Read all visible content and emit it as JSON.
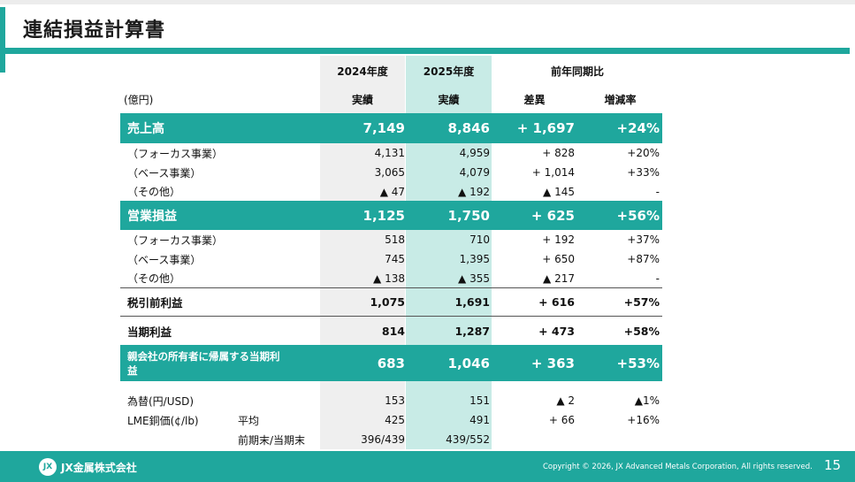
{
  "title": "連結損益計算書",
  "unit": "(億円)",
  "headers": {
    "fy2024": "2024年度",
    "fy2025": "2025年度",
    "yoy": "前年同期比",
    "actual_24": "実績",
    "actual_25": "実績",
    "diff": "差異",
    "rate": "増減率"
  },
  "rows": [
    {
      "label": "売上高",
      "v24": "7,149",
      "v25": "8,846",
      "diff": "+ 1,697",
      "rate": "+24%"
    },
    {
      "label": "（フォーカス事業）",
      "v24": "4,131",
      "v25": "4,959",
      "diff": "+ 828",
      "rate": "+20%"
    },
    {
      "label": "（ベース事業）",
      "v24": "3,065",
      "v25": "4,079",
      "diff": "+ 1,014",
      "rate": "+33%"
    },
    {
      "label": "（その他）",
      "v24": "▲ 47",
      "v25": "▲ 192",
      "diff": "▲ 145",
      "rate": "-"
    },
    {
      "label": "営業損益",
      "v24": "1,125",
      "v25": "1,750",
      "diff": "+ 625",
      "rate": "+56%"
    },
    {
      "label": "（フォーカス事業）",
      "v24": "518",
      "v25": "710",
      "diff": "+ 192",
      "rate": "+37%"
    },
    {
      "label": "（ベース事業）",
      "v24": "745",
      "v25": "1,395",
      "diff": "+ 650",
      "rate": "+87%"
    },
    {
      "label": "（その他）",
      "v24": "▲ 138",
      "v25": "▲ 355",
      "diff": "▲ 217",
      "rate": "-"
    },
    {
      "label": "税引前利益",
      "v24": "1,075",
      "v25": "1,691",
      "diff": "+ 616",
      "rate": "+57%"
    },
    {
      "label": "当期利益",
      "v24": "814",
      "v25": "1,287",
      "diff": "+ 473",
      "rate": "+58%"
    },
    {
      "label": "親会社の所有者に帰属する当期利益",
      "v24": "683",
      "v25": "1,046",
      "diff": "+ 363",
      "rate": "+53%"
    },
    {
      "label": "為替(円/USD)",
      "v24": "153",
      "v25": "151",
      "diff": "▲ 2",
      "rate": "▲1%"
    },
    {
      "label": "LME銅価(¢/lb)",
      "sub": "平均",
      "v24": "425",
      "v25": "491",
      "diff": "+ 66",
      "rate": "+16%"
    },
    {
      "sub": "前期末/当期末",
      "v24": "396/439",
      "v25": "439/552"
    }
  ],
  "footer": {
    "logo_mark": "JX",
    "logo": "JX金属株式会社",
    "copyright": "Copyright © 2026, JX Advanced Metals Corporation, All rights reserved.",
    "page": "15"
  },
  "colors": {
    "accent": "#1fa79d",
    "col2025": "#c8ebe6",
    "col2024": "#efefef"
  }
}
